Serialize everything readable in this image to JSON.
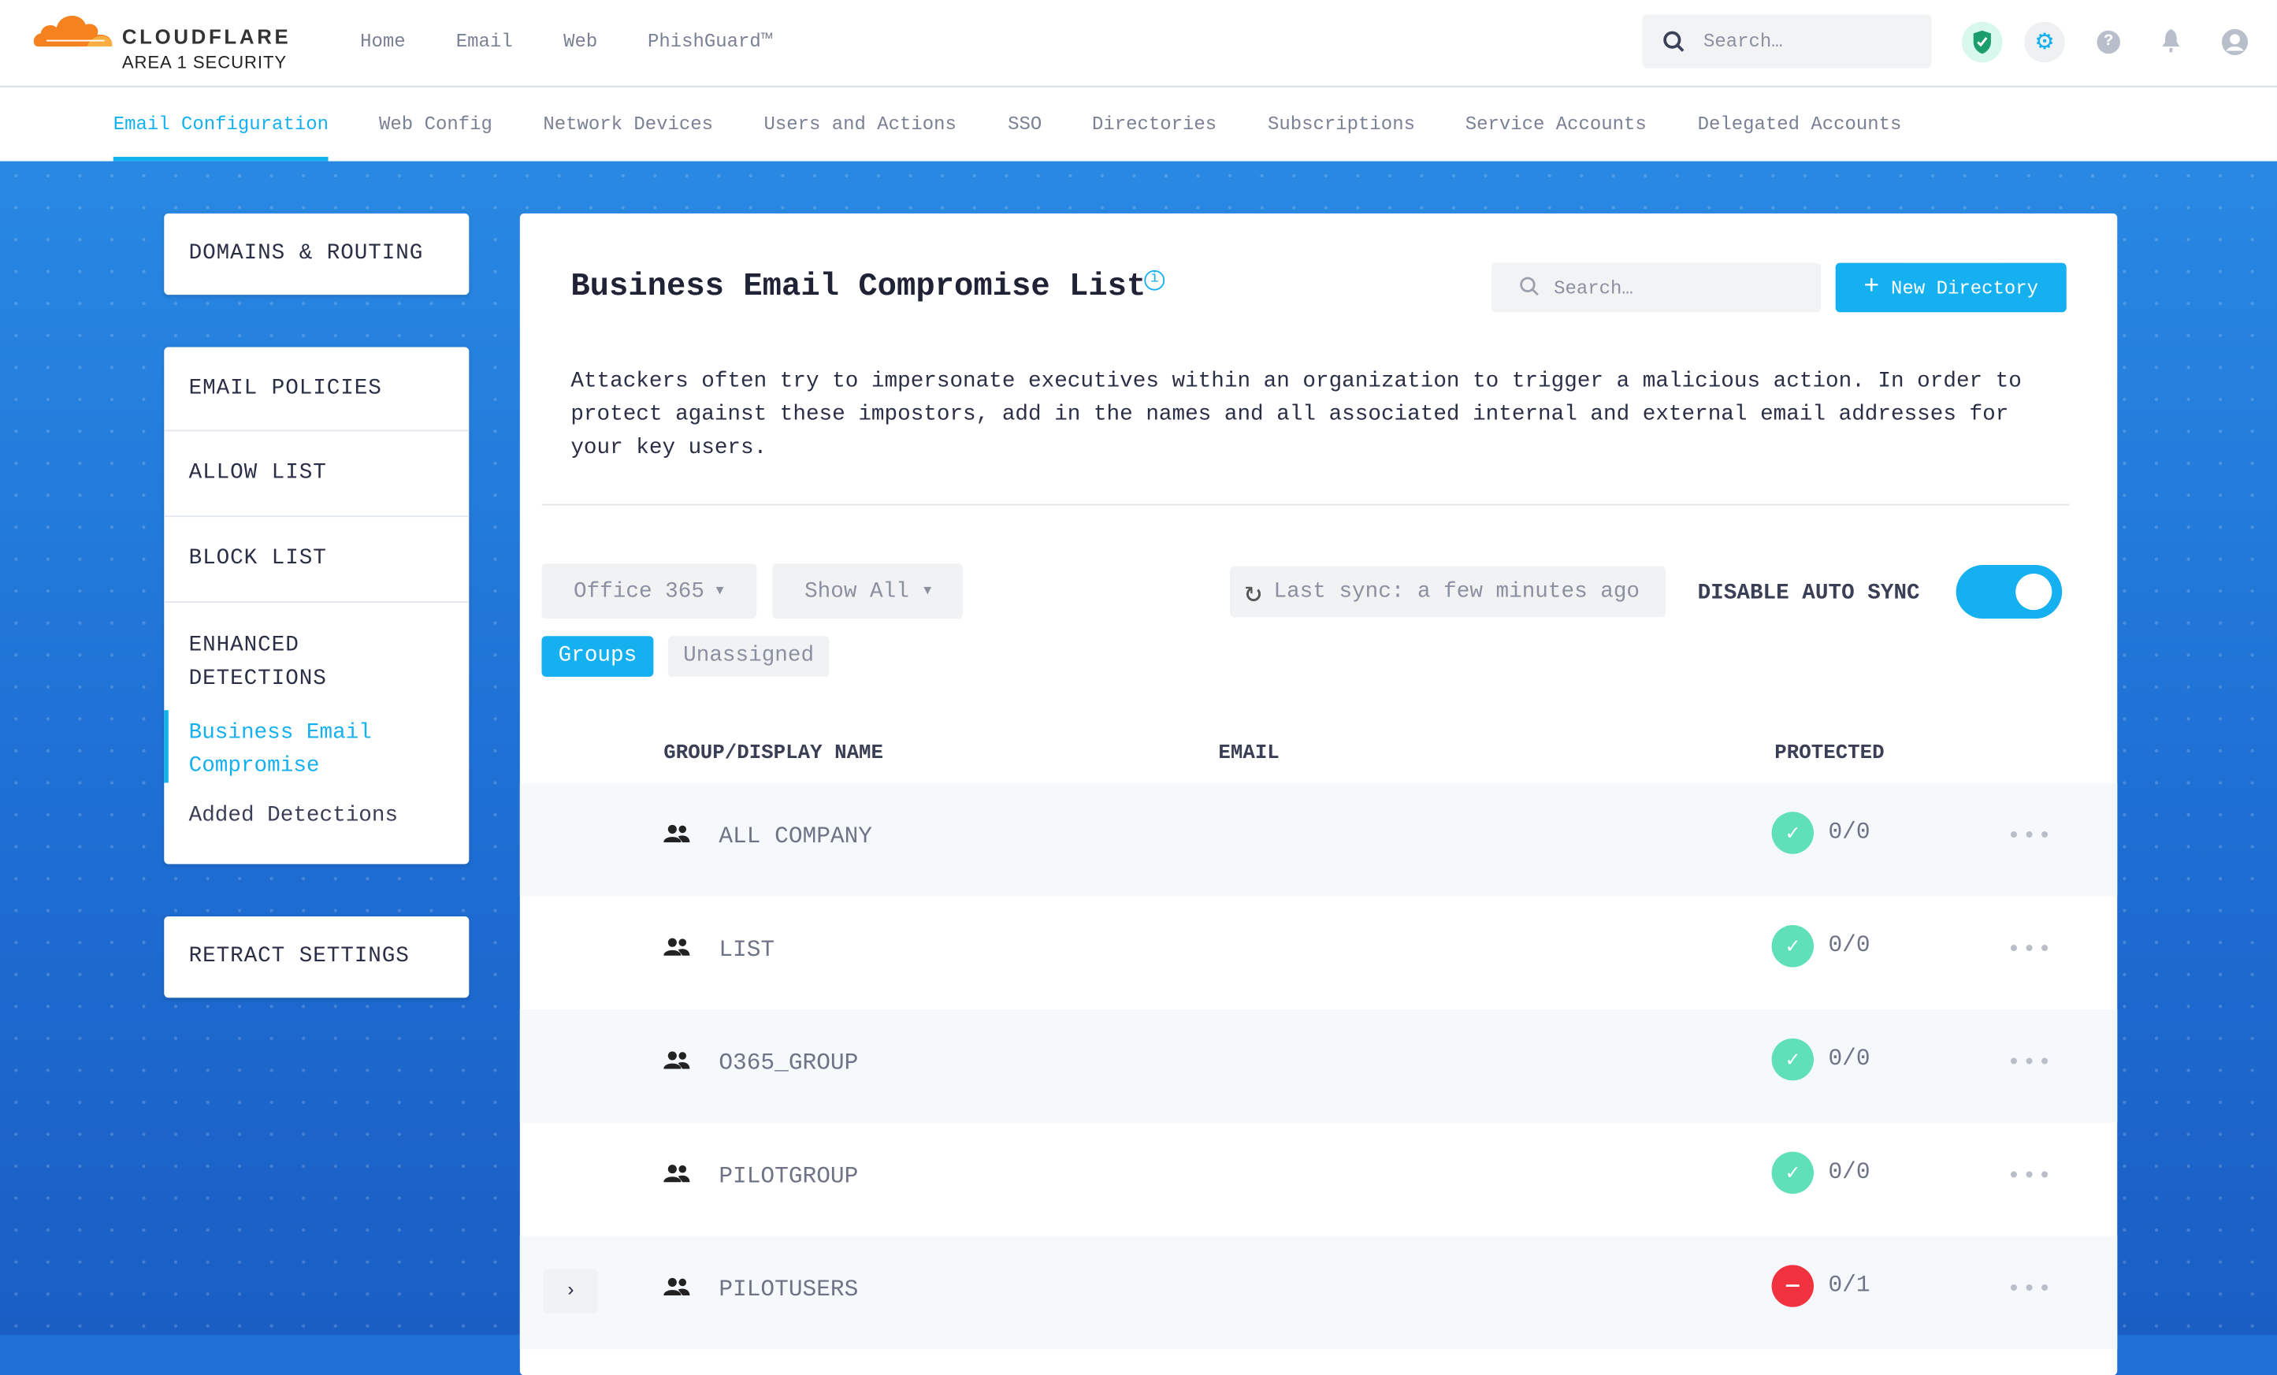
{
  "brand": {
    "name": "CLOUDFLARE",
    "sub": "AREA 1 SECURITY"
  },
  "top_nav": [
    "Home",
    "Email",
    "Web",
    "PhishGuard™"
  ],
  "header_search": {
    "placeholder": "Search…"
  },
  "header_icons": [
    "shield-check-icon",
    "gear-icon",
    "help-icon",
    "bell-icon",
    "user-avatar-icon"
  ],
  "tabs": [
    "Email Configuration",
    "Web Config",
    "Network Devices",
    "Users and Actions",
    "SSO",
    "Directories",
    "Subscriptions",
    "Service Accounts",
    "Delegated Accounts"
  ],
  "active_tab": "Email Configuration",
  "sidebar": {
    "domains": "DOMAINS & ROUTING",
    "policies": "EMAIL POLICIES",
    "allow": "ALLOW LIST",
    "block": "BLOCK LIST",
    "enhanced": "ENHANCED DETECTIONS",
    "bec": "Business Email Compromise",
    "added": "Added Detections",
    "retract": "RETRACT SETTINGS"
  },
  "main": {
    "title": "Business Email Compromise List",
    "search_placeholder": "Search…",
    "new_button": "New Directory",
    "description": "Attackers often try to impersonate executives within an organization to trigger a malicious action. In order to protect against these impostors, add in the names and all associated internal and external email addresses for your key users.",
    "source_select": "Office 365",
    "filter_select": "Show All",
    "last_sync": "Last sync: a few minutes ago",
    "auto_sync_label": "DISABLE AUTO SYNC",
    "auto_sync_on": true,
    "view_groups": "Groups",
    "view_unassigned": "Unassigned",
    "columns": [
      "GROUP/DISPLAY NAME",
      "EMAIL",
      "PROTECTED"
    ],
    "rows": [
      {
        "name": "ALL COMPANY",
        "protected": "0/0",
        "status": "ok"
      },
      {
        "name": "LIST",
        "protected": "0/0",
        "status": "ok"
      },
      {
        "name": "O365_GROUP",
        "protected": "0/0",
        "status": "ok"
      },
      {
        "name": "PILOTGROUP",
        "protected": "0/0",
        "status": "ok"
      },
      {
        "name": "PILOTUSERS",
        "protected": "0/1",
        "status": "blocked"
      }
    ]
  },
  "colors": {
    "accent": "#14b0ef",
    "ok": "#5fe0b8",
    "error": "#f0333f",
    "brand_orange": "#f6821f"
  }
}
